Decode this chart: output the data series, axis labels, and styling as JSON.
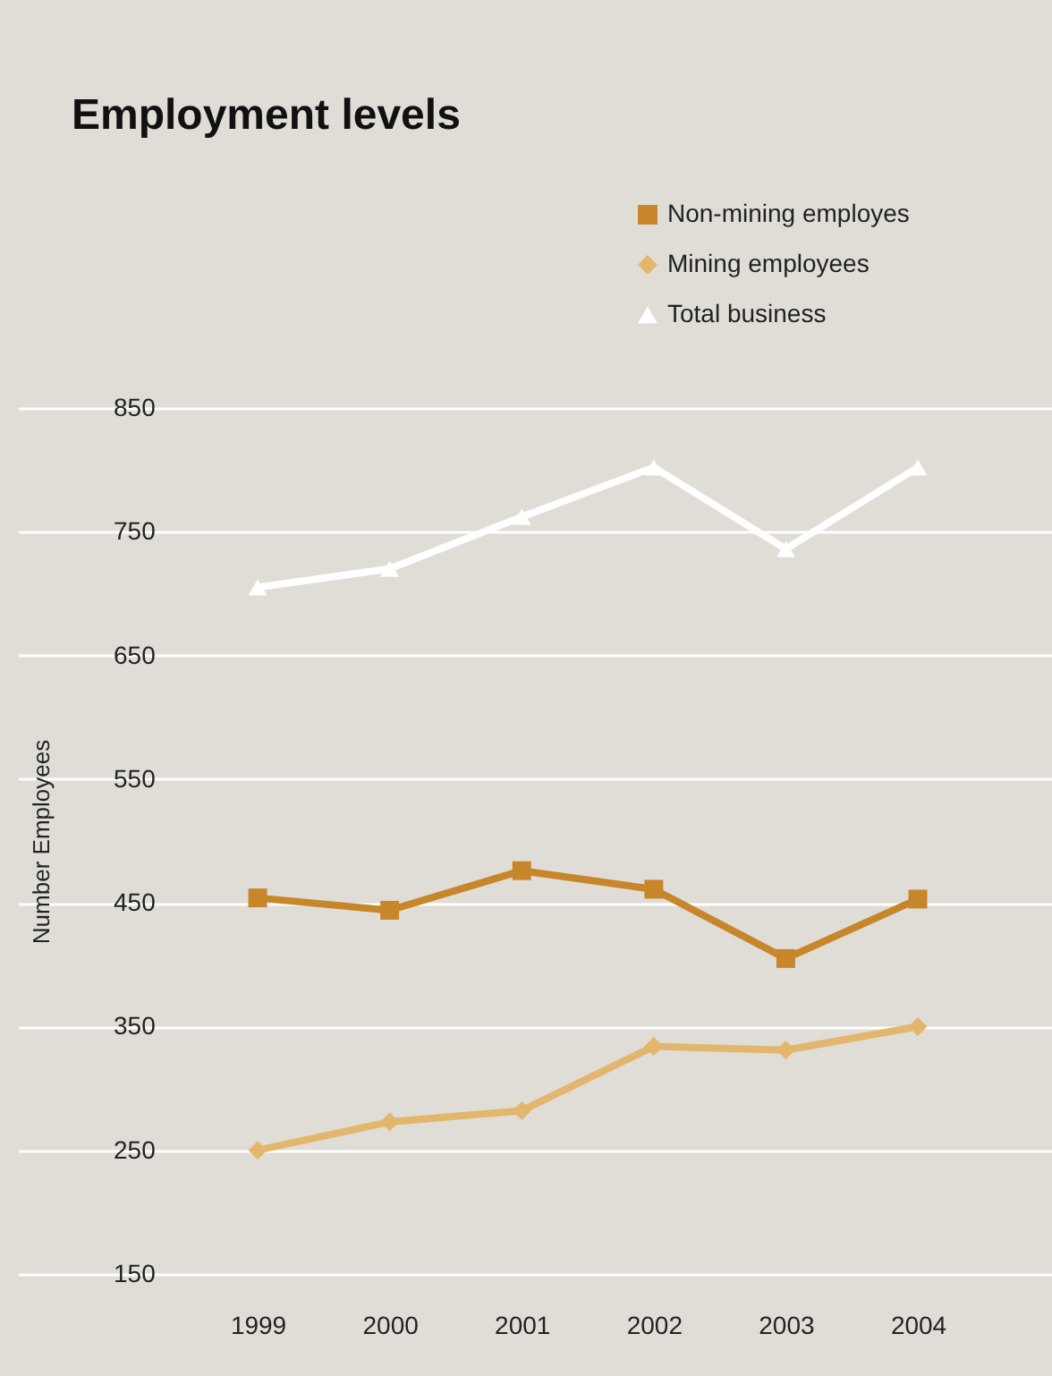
{
  "chart_data": {
    "type": "line",
    "title": "Employment levels",
    "ylabel": "Number Employees",
    "categories": [
      "1999",
      "2000",
      "2001",
      "2002",
      "2003",
      "2004"
    ],
    "series": [
      {
        "name": "Non-mining employes",
        "color": "#c8862a",
        "marker": "square",
        "values": [
          454,
          444,
          476,
          461,
          405,
          453
        ]
      },
      {
        "name": "Mining employees",
        "color": "#e2b66c",
        "marker": "diamond",
        "values": [
          250,
          273,
          282,
          334,
          331,
          350
        ]
      },
      {
        "name": "Total business",
        "color": "#ffffff",
        "marker": "triangle",
        "values": [
          705,
          720,
          762,
          802,
          736,
          802
        ]
      }
    ],
    "ylim": [
      150,
      850
    ],
    "yticks": [
      150,
      250,
      350,
      450,
      550,
      650,
      750,
      850
    ],
    "grid": "y",
    "legend": "top right"
  }
}
